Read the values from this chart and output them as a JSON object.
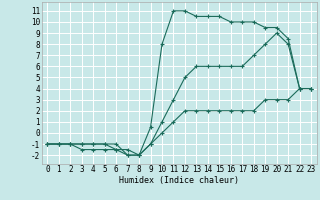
{
  "xlabel": "Humidex (Indice chaleur)",
  "bg_color": "#c8e8e8",
  "grid_color": "#ffffff",
  "line_color": "#1a6b5a",
  "xlim": [
    -0.5,
    23.5
  ],
  "ylim": [
    -2.8,
    11.8
  ],
  "xticks": [
    0,
    1,
    2,
    3,
    4,
    5,
    6,
    7,
    8,
    9,
    10,
    11,
    12,
    13,
    14,
    15,
    16,
    17,
    18,
    19,
    20,
    21,
    22,
    23
  ],
  "yticks": [
    -2,
    -1,
    0,
    1,
    2,
    3,
    4,
    5,
    6,
    7,
    8,
    9,
    10,
    11
  ],
  "line1_x": [
    0,
    1,
    2,
    3,
    4,
    5,
    6,
    7,
    8,
    9,
    10,
    11,
    12,
    13,
    14,
    15,
    16,
    17,
    18,
    19,
    20,
    21,
    22,
    23
  ],
  "line1_y": [
    -1,
    -1,
    -1,
    -1,
    -1,
    -1,
    -1,
    -2,
    -2,
    -1,
    0,
    1,
    2,
    2,
    2,
    2,
    2,
    2,
    2,
    3,
    3,
    3,
    4,
    4
  ],
  "line2_x": [
    0,
    1,
    2,
    3,
    4,
    5,
    6,
    7,
    8,
    9,
    10,
    11,
    12,
    13,
    14,
    15,
    16,
    17,
    18,
    19,
    20,
    21,
    22,
    23
  ],
  "line2_y": [
    -1,
    -1,
    -1,
    -1.5,
    -1.5,
    -1.5,
    -1.5,
    -2,
    -2,
    -1,
    1,
    3,
    5,
    6,
    6,
    6,
    6,
    6,
    7,
    8,
    9,
    8,
    4,
    4
  ],
  "line3_x": [
    0,
    1,
    2,
    3,
    4,
    5,
    6,
    7,
    8,
    9,
    10,
    11,
    12,
    13,
    14,
    15,
    16,
    17,
    18,
    19,
    20,
    21,
    22,
    23
  ],
  "line3_y": [
    -1,
    -1,
    -1,
    -1,
    -1,
    -1,
    -1.5,
    -1.5,
    -2,
    0.5,
    8,
    11,
    11,
    10.5,
    10.5,
    10.5,
    10,
    10,
    10,
    9.5,
    9.5,
    8.5,
    4,
    4
  ]
}
